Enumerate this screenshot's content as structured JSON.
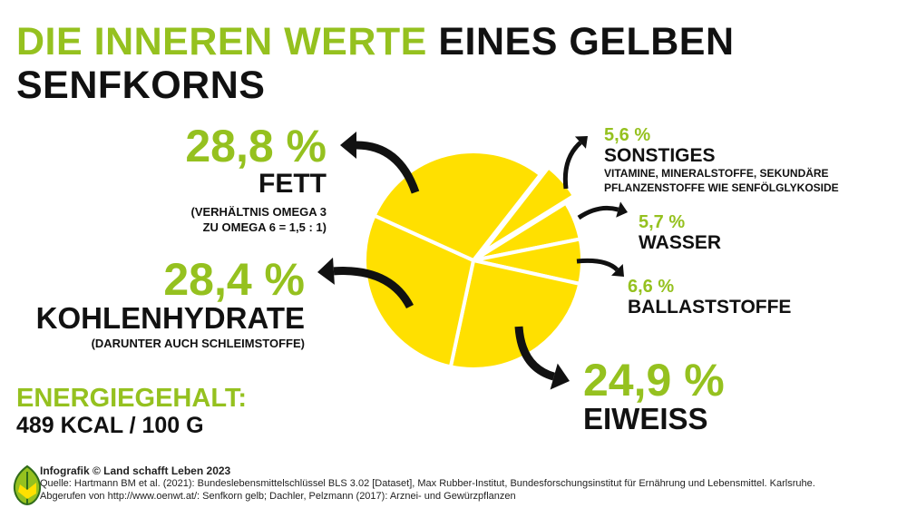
{
  "title": {
    "part1": "DIE INNEREN WERTE",
    "part2": "EINES GELBEN",
    "line2": "SENFKORNS"
  },
  "colors": {
    "green": "#95c11f",
    "yellow": "#ffe000",
    "black": "#111111"
  },
  "segments": {
    "fett": {
      "pct": "28,8 %",
      "label": "FETT",
      "note1": "(VERHÄLTNIS OMEGA 3",
      "note2": "ZU OMEGA 6 = 1,5 : 1)"
    },
    "kohlenhydrate": {
      "pct": "28,4 %",
      "label": "KOHLENHYDRATE",
      "note": "(DARUNTER AUCH SCHLEIMSTOFFE)"
    },
    "sonstiges": {
      "pct": "5,6 %",
      "label": "SONSTIGES",
      "note1": "VITAMINE, MINERALSTOFFE, SEKUNDÄRE",
      "note2": "PFLANZENSTOFFE WIE SENFÖLGLYKOSIDE"
    },
    "wasser": {
      "pct": "5,7 %",
      "label": "WASSER"
    },
    "ballaststoffe": {
      "pct": "6,6 %",
      "label": "BALLASTSTOFFE"
    },
    "eiweiss": {
      "pct": "24,9 %",
      "label": "EIWEISS"
    }
  },
  "energy": {
    "label": "ENERGIEGEHALT:",
    "value": "489 KCAL / 100 G"
  },
  "footer": {
    "credit": "Infografik © Land schafft Leben 2023",
    "source": "Quelle: Hartmann BM et al. (2021): Bundeslebensmittelschlüssel BLS 3.02 [Dataset], Max Rubber-Institut, Bundesforschungsinstitut für Ernährung und Lebensmittel. Karlsruhe.",
    "retrieved": "Abgerufen von http://www.oenwt.at/: Senfkorn gelb; Dachler, Pelzmann (2017): Arznei- und Gewürzpflanzen"
  },
  "chart_data": {
    "type": "pie",
    "title": "Die inneren Werte eines gelben Senfkorns",
    "categories": [
      "Sonstiges",
      "Wasser",
      "Ballaststoffe",
      "Eiweiß",
      "Kohlenhydrate",
      "Fett"
    ],
    "values": [
      5.6,
      5.7,
      6.6,
      24.9,
      28.4,
      28.8
    ],
    "unit": "%",
    "exploded": [
      "Sonstiges"
    ]
  }
}
